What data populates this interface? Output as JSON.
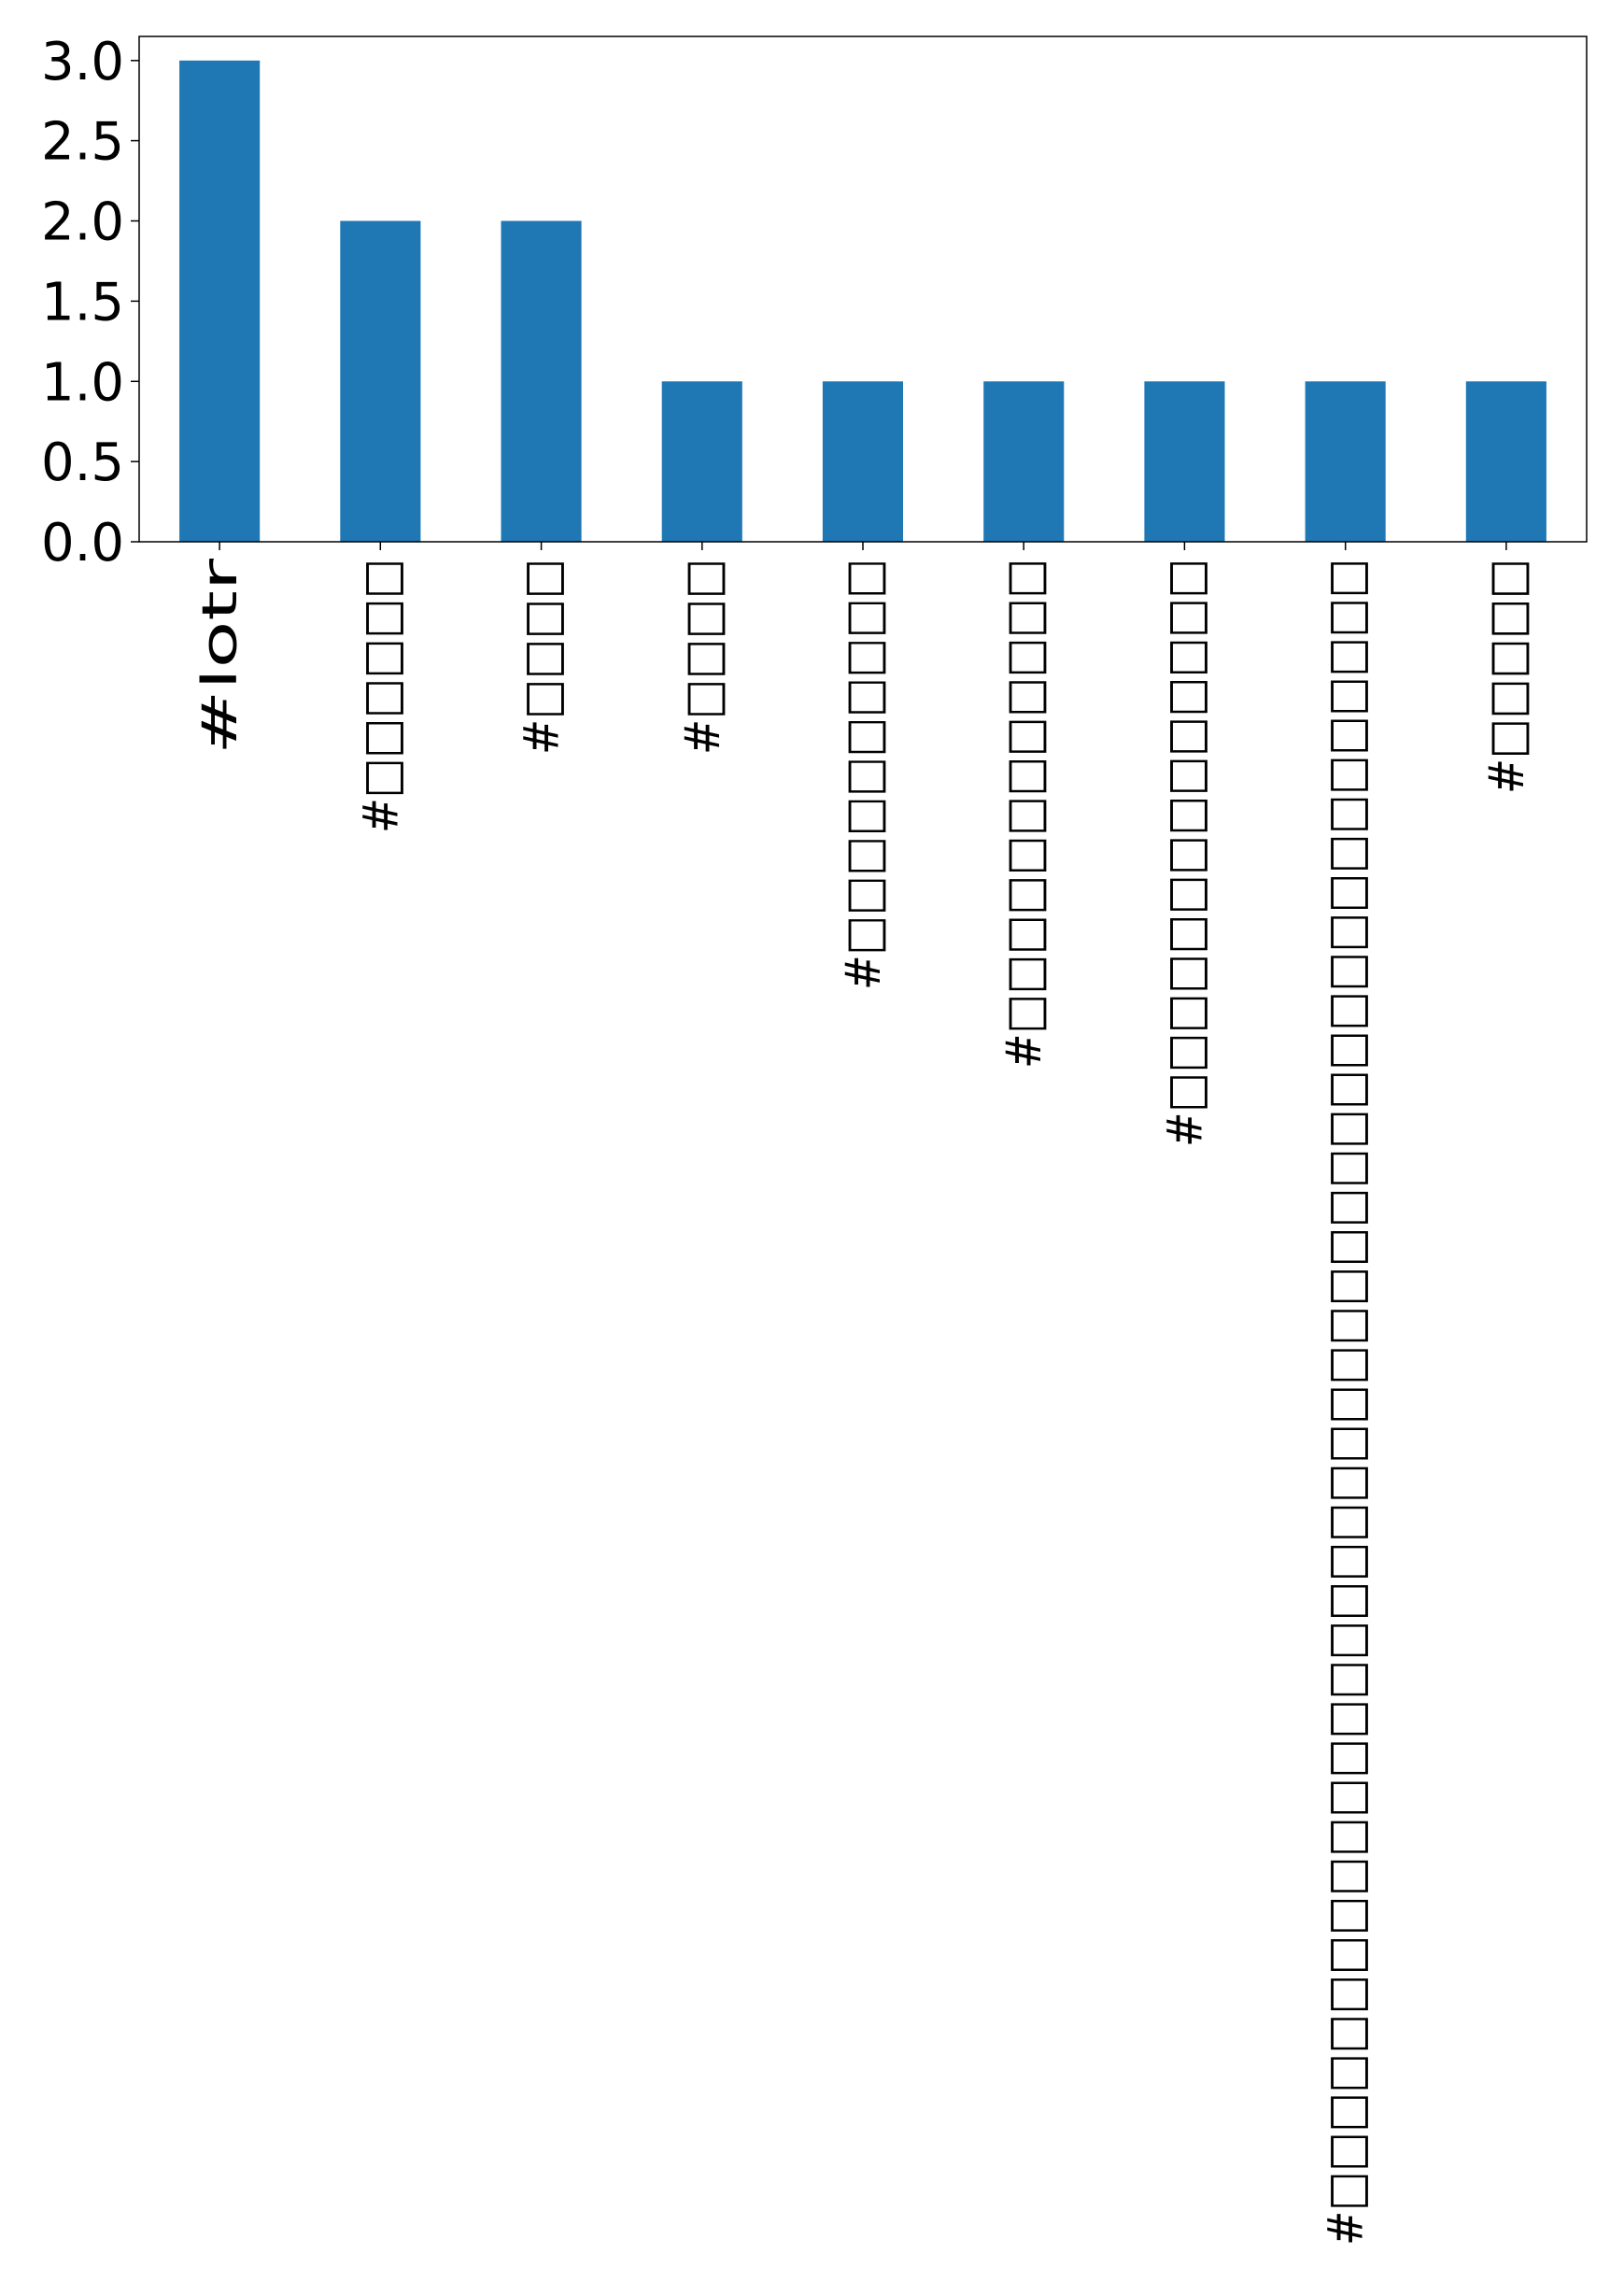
{
  "chart_data": {
    "type": "bar",
    "title": "",
    "xlabel": "",
    "ylabel": "",
    "categories": [
      "#lotr",
      "#□□□□□□",
      "#□□□□",
      "#□□□□",
      "#□□□□□□□□□□",
      "#□□□□□□□□□□□□",
      "#□□□□□□□□□□□□□□",
      "#□□□□□□□□□□□□□□□□□□□□□□□□□□□□□□□□□□□□□□□□□□",
      "#□□□□□"
    ],
    "values": [
      3,
      2,
      2,
      1,
      1,
      1,
      1,
      1,
      1
    ],
    "ylim": [
      0,
      3.15
    ],
    "yticks": [
      "0.0",
      "0.5",
      "1.0",
      "1.5",
      "2.0",
      "2.5",
      "3.0"
    ],
    "bar_color": "#1f77b4",
    "grid": false,
    "legend": "none"
  }
}
